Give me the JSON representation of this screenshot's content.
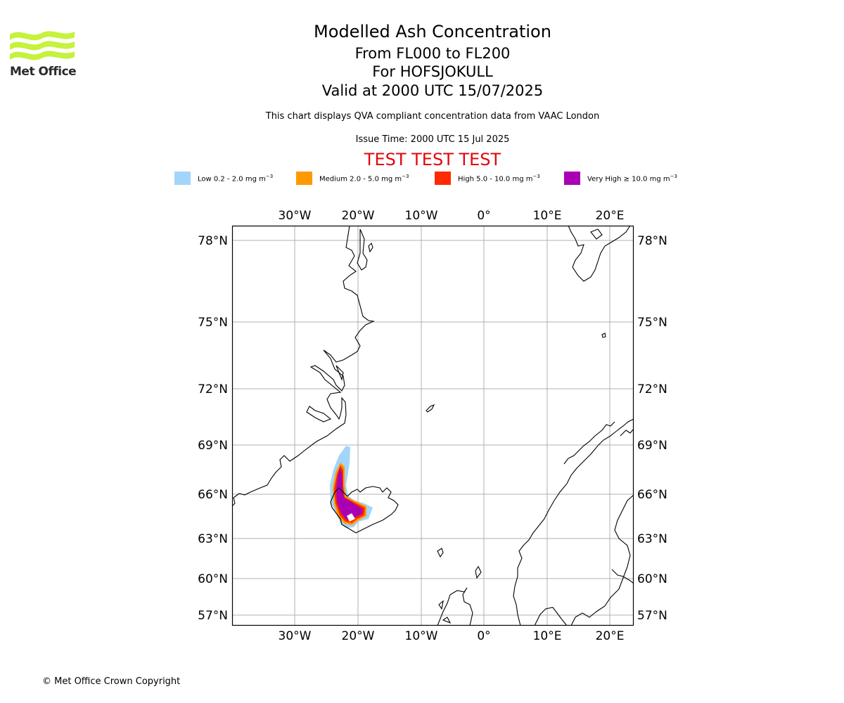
{
  "header": {
    "title": "Modelled Ash Concentration",
    "levels": "From FL000 to FL200",
    "volcano": "For HOFSJOKULL",
    "valid": "Valid at 2000 UTC 15/07/2025",
    "subtitle": "This chart displays QVA compliant concentration data from VAAC London",
    "issue_time": "Issue Time: 2000 UTC 15 Jul 2025",
    "test_banner": "TEST TEST TEST"
  },
  "logo": {
    "text": "Met Office",
    "color": "#c5f23a"
  },
  "legend": [
    {
      "label": "Low 0.2 - 2.0 mg m",
      "sup": "−3",
      "color": "#a3d5fb"
    },
    {
      "label": "Medium 2.0 - 5.0 mg m",
      "sup": "−3",
      "color": "#fe9900"
    },
    {
      "label": "High 5.0 - 10.0 mg m",
      "sup": "−3",
      "color": "#fe2a00"
    },
    {
      "label": "Very High  ≥  10.0 mg m",
      "sup": "−3",
      "color": "#a900b3"
    }
  ],
  "map": {
    "lon_labels": [
      "30°W",
      "20°W",
      "10°W",
      "0°",
      "10°E",
      "20°E"
    ],
    "lat_labels": [
      "78°N",
      "75°N",
      "72°N",
      "69°N",
      "66°N",
      "63°N",
      "60°N",
      "57°N"
    ],
    "grid": true
  },
  "footer": {
    "copyright": "© Met Office Crown Copyright"
  }
}
